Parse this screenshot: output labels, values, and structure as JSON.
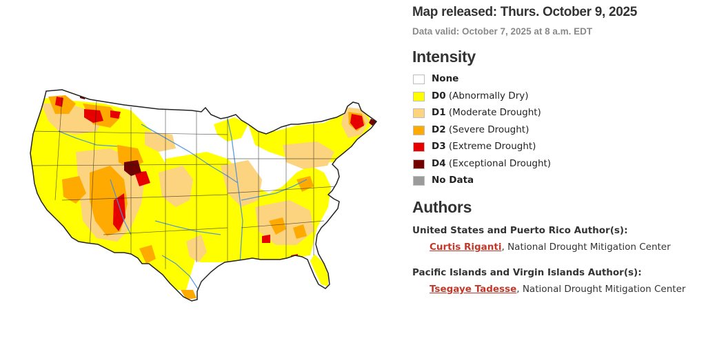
{
  "header": {
    "released": "Map released: Thurs. October 9, 2025",
    "valid": "Data valid: October 7, 2025 at 8 a.m. EDT"
  },
  "legend": {
    "title": "Intensity",
    "items": [
      {
        "code": "None",
        "desc": "",
        "color": "#ffffff"
      },
      {
        "code": "D0",
        "desc": " (Abnormally Dry)",
        "color": "#ffff00"
      },
      {
        "code": "D1",
        "desc": " (Moderate Drought)",
        "color": "#fcd37f"
      },
      {
        "code": "D2",
        "desc": " (Severe Drought)",
        "color": "#ffaa00"
      },
      {
        "code": "D3",
        "desc": " (Extreme Drought)",
        "color": "#e60000"
      },
      {
        "code": "D4",
        "desc": " (Exceptional Drought)",
        "color": "#730000"
      },
      {
        "code": "No Data",
        "desc": "",
        "color": "#9b9b9b"
      }
    ]
  },
  "authors": {
    "title": "Authors",
    "us_heading": "United States and Puerto Rico Author(s):",
    "us_name": "Curtis Riganti",
    "us_org": ", National Drought Mitigation Center",
    "pi_heading": "Pacific Islands and Virgin Islands Author(s):",
    "pi_name": "Tsegaye Tadesse",
    "pi_org": ", National Drought Mitigation Center"
  },
  "map": {
    "region": "Contiguous United States",
    "colors": {
      "none": "#ffffff",
      "d0": "#ffff00",
      "d1": "#fcd37f",
      "d2": "#ffaa00",
      "d3": "#e60000",
      "d4": "#730000",
      "border": "#222222",
      "river": "#4a90d9"
    }
  }
}
